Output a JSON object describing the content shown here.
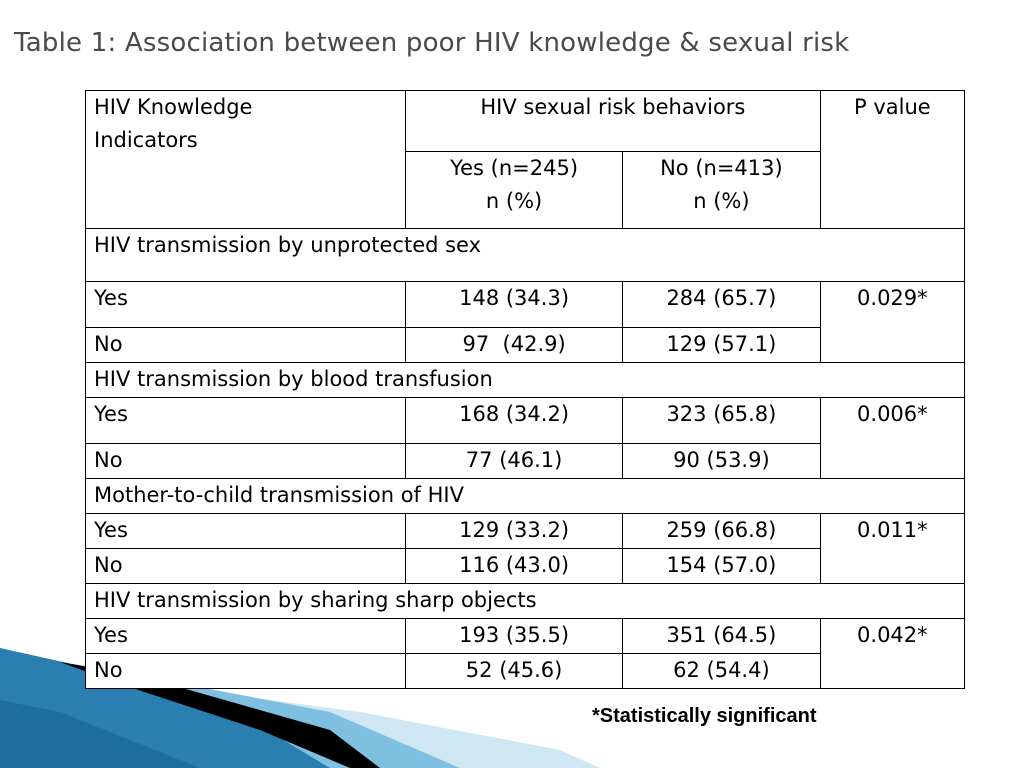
{
  "title": "Table 1: Association between poor HIV knowledge & sexual risk",
  "colors": {
    "title_text": "#4a4a4a",
    "decor_blue": "#2b7fb0",
    "decor_light": "#a9d4ea",
    "decor_black": "#000000"
  },
  "table": {
    "header": {
      "indicators": [
        "HIV Knowledge",
        "Indicators"
      ],
      "risk_behaviors": "HIV sexual risk behaviors",
      "p_value": "P value",
      "yes_group": [
        "Yes (n=245)",
        "n (%)"
      ],
      "no_group": [
        "No (n=413)",
        "n (%)"
      ]
    },
    "sections": [
      {
        "title": "HIV transmission by unprotected sex",
        "rows": [
          {
            "label": "Yes",
            "yes": "148 (34.3)",
            "no": "284 (65.7)"
          },
          {
            "label": "No",
            "yes": "97  (42.9)",
            "no": "129 (57.1)"
          }
        ],
        "p_value": "0.029*"
      },
      {
        "title": "HIV transmission by blood transfusion",
        "rows": [
          {
            "label": "Yes",
            "yes": "168 (34.2)",
            "no": "323 (65.8)"
          },
          {
            "label": "No",
            "yes": "77 (46.1)",
            "no": "90 (53.9)"
          }
        ],
        "p_value": "0.006*"
      },
      {
        "title": "Mother-to-child transmission of HIV",
        "rows": [
          {
            "label": "Yes",
            "yes": "129 (33.2)",
            "no": "259 (66.8)"
          },
          {
            "label": "No",
            "yes": "116 (43.0)",
            "no": "154 (57.0)"
          }
        ],
        "p_value": "0.011*"
      },
      {
        "title": "HIV transmission by sharing sharp objects",
        "rows": [
          {
            "label": "Yes",
            "yes": "193 (35.5)",
            "no": "351 (64.5)"
          },
          {
            "label": "No",
            "yes": "52 (45.6)",
            "no": "62 (54.4)"
          }
        ],
        "p_value": "0.042*"
      }
    ]
  },
  "footnote": "*Statistically significant"
}
